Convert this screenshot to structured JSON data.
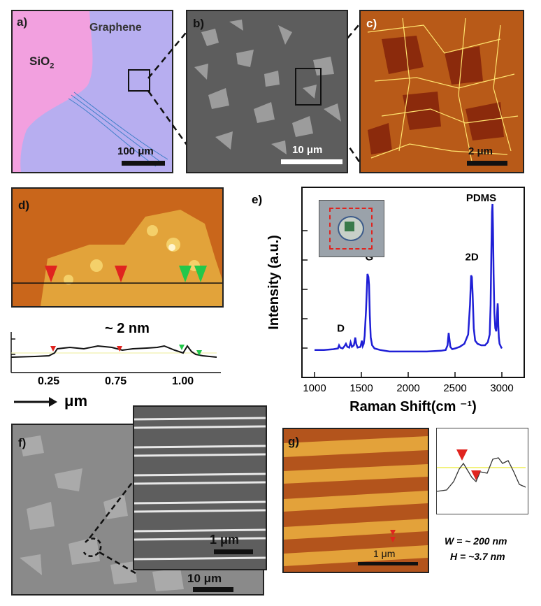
{
  "panel_a": {
    "label": "a)",
    "graphene": "Graphene",
    "sio2_base": "SiO",
    "sio2_sub": "2",
    "scale": "100 μm"
  },
  "panel_b": {
    "label": "b)",
    "scale": "10 μm"
  },
  "panel_c": {
    "label": "c)",
    "scale": "2 μm"
  },
  "panel_d": {
    "label": "d)"
  },
  "profile_d": {
    "annotation": "~ 2 nm",
    "ticks": [
      "0.25",
      "0.75",
      "1.00"
    ],
    "axis_unit": "μm"
  },
  "panel_e": {
    "label": "e)"
  },
  "panel_f": {
    "label": "f)",
    "scale": "10 μm",
    "inset_scale": "1 μm"
  },
  "panel_g": {
    "label": "g)",
    "scale": "1 μm",
    "w_text": "W = ~ 200 nm",
    "h_text": "H = ~3.7 nm"
  },
  "colors": {
    "raman": "#1f1fd6",
    "marker_red": "#e0241f",
    "marker_green": "#22c84a",
    "afm": "#c9661b",
    "sio2": "#f2a0df",
    "graphene": "#b7aef0"
  },
  "chart_data": {
    "type": "line",
    "xlabel": "Raman Shift(cm ⁻¹)",
    "ylabel": "Intensity  (a.u.)",
    "xlim": [
      1000,
      3000
    ],
    "xticks": [
      "1000",
      "1500",
      "2000",
      "2500",
      "3000"
    ],
    "ylim": [
      0,
      1
    ],
    "peak_labels": [
      "D",
      "G",
      "2D",
      "PDMS"
    ],
    "series": [
      {
        "x": [
          1000,
          1100,
          1200,
          1250,
          1262,
          1275,
          1300,
          1320,
          1335,
          1350,
          1370,
          1385,
          1400,
          1420,
          1435,
          1445,
          1460,
          1490,
          1505,
          1515,
          1525,
          1535,
          1550,
          1565,
          1575,
          1582,
          1590,
          1600,
          1615,
          1640,
          1700,
          1800,
          2000,
          2200,
          2350,
          2400,
          2420,
          2432,
          2440,
          2450,
          2470,
          2500,
          2550,
          2600,
          2640,
          2660,
          2672,
          2680,
          2688,
          2700,
          2715,
          2740,
          2780,
          2820,
          2850,
          2870,
          2880,
          2888,
          2895,
          2900,
          2905,
          2912,
          2920,
          2930,
          2940,
          2945,
          2950,
          2955,
          2958,
          2962,
          2968,
          2975,
          2990,
          3000
        ],
        "y": [
          0.06,
          0.06,
          0.065,
          0.07,
          0.09,
          0.075,
          0.07,
          0.085,
          0.1,
          0.08,
          0.075,
          0.11,
          0.08,
          0.09,
          0.14,
          0.1,
          0.075,
          0.08,
          0.12,
          0.085,
          0.1,
          0.15,
          0.32,
          0.55,
          0.53,
          0.48,
          0.28,
          0.14,
          0.09,
          0.07,
          0.06,
          0.05,
          0.05,
          0.05,
          0.055,
          0.06,
          0.09,
          0.17,
          0.13,
          0.08,
          0.065,
          0.07,
          0.08,
          0.1,
          0.16,
          0.35,
          0.54,
          0.53,
          0.42,
          0.2,
          0.12,
          0.1,
          0.09,
          0.09,
          0.11,
          0.16,
          0.35,
          0.7,
          0.95,
          1.0,
          0.85,
          0.55,
          0.3,
          0.2,
          0.18,
          0.22,
          0.3,
          0.36,
          0.33,
          0.22,
          0.14,
          0.1,
          0.08,
          0.07
        ]
      }
    ]
  }
}
